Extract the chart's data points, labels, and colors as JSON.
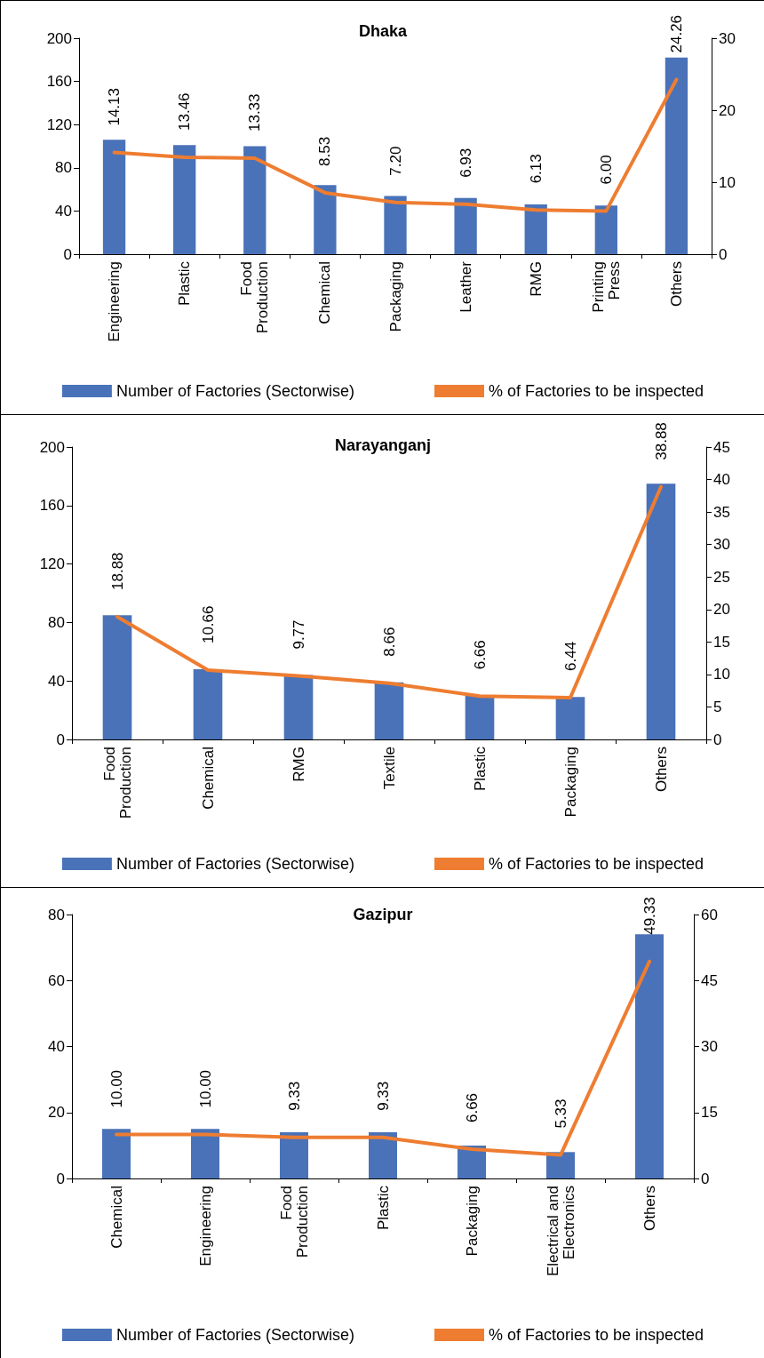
{
  "chart_data": [
    {
      "type": "bar",
      "title": "Dhaka",
      "categories": [
        "Engineering",
        "Plastic",
        "Food\nProduction",
        "Chemical",
        "Packaging",
        "Leather",
        "RMG",
        "Printing\nPress",
        "Others"
      ],
      "series": [
        {
          "name": "Number of Factories (Sectorwise)",
          "color": "#4a72b8",
          "values": [
            106,
            101,
            100,
            64,
            54,
            52,
            46,
            45,
            182
          ]
        },
        {
          "name": "% of Factories to be inspected",
          "type": "line",
          "axis": "y2",
          "color": "#ee7d31",
          "values": [
            14.13,
            13.46,
            13.33,
            8.53,
            7.2,
            6.93,
            6.13,
            6.0,
            24.26
          ],
          "value_labels": [
            "14.13",
            "13.46",
            "13.33",
            "8.53",
            "7.20",
            "6.93",
            "6.13",
            "6.00",
            "24.26"
          ]
        }
      ],
      "ylim": [
        0,
        200
      ],
      "yticks": [
        0,
        40,
        80,
        120,
        160,
        200
      ],
      "y2lim": [
        0,
        30
      ],
      "y2ticks": [
        0,
        10,
        20,
        30
      ],
      "legend": "bottom",
      "grid": false
    },
    {
      "type": "bar",
      "title": "Narayanganj",
      "categories": [
        "Food\nProduction",
        "Chemical",
        "RMG",
        "Textile",
        "Plastic",
        "Packaging",
        "Others"
      ],
      "series": [
        {
          "name": "Number of Factories (Sectorwise)",
          "color": "#4a72b8",
          "values": [
            85,
            48,
            44,
            39,
            30,
            29,
            175
          ]
        },
        {
          "name": "% of Factories to be inspected",
          "type": "line",
          "axis": "y2",
          "color": "#ee7d31",
          "values": [
            18.88,
            10.66,
            9.77,
            8.66,
            6.66,
            6.44,
            38.88
          ],
          "value_labels": [
            "18.88",
            "10.66",
            "9.77",
            "8.66",
            "6.66",
            "6.44",
            "38.88"
          ]
        }
      ],
      "ylim": [
        0,
        200
      ],
      "yticks": [
        0,
        40,
        80,
        120,
        160,
        200
      ],
      "y2lim": [
        0,
        45
      ],
      "y2ticks": [
        0,
        5,
        10,
        15,
        20,
        25,
        30,
        35,
        40,
        45
      ],
      "legend": "bottom",
      "grid": false
    },
    {
      "type": "bar",
      "title": "Gazipur",
      "categories": [
        "Chemical",
        "Engineering",
        "Food\nProduction",
        "Plastic",
        "Packaging",
        "Electrical and\nElectronics",
        "Others"
      ],
      "series": [
        {
          "name": "Number of Factories (Sectorwise)",
          "color": "#4a72b8",
          "values": [
            15,
            15,
            14,
            14,
            10,
            8,
            74
          ]
        },
        {
          "name": "% of Factories to be inspected",
          "type": "line",
          "axis": "y2",
          "color": "#ee7d31",
          "values": [
            10.0,
            10.0,
            9.33,
            9.33,
            6.66,
            5.33,
            49.33
          ],
          "value_labels": [
            "10.00",
            "10.00",
            "9.33",
            "9.33",
            "6.66",
            "5.33",
            "49.33"
          ]
        }
      ],
      "ylim": [
        0,
        80
      ],
      "yticks": [
        0,
        20,
        40,
        60,
        80
      ],
      "y2lim": [
        0,
        60
      ],
      "y2ticks": [
        0,
        15,
        30,
        45,
        60
      ],
      "legend": "bottom",
      "grid": false
    }
  ]
}
